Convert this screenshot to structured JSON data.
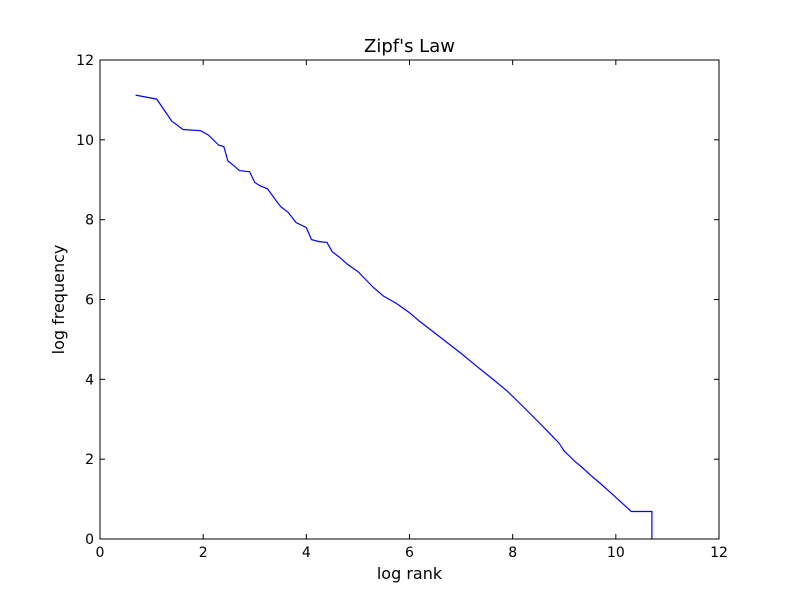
{
  "chart_data": {
    "type": "line",
    "title": "Zipf's Law",
    "xlabel": "log rank",
    "ylabel": "log frequency",
    "xlim": [
      0,
      12
    ],
    "ylim": [
      0,
      12
    ],
    "xticks": [
      "0",
      "2",
      "4",
      "6",
      "8",
      "10",
      "12"
    ],
    "yticks": [
      "0",
      "2",
      "4",
      "6",
      "8",
      "10",
      "12"
    ],
    "grid": false,
    "line_color": "#0000ff",
    "series": [
      {
        "values": [
          [
            0.69,
            11.12
          ],
          [
            1.1,
            11.02
          ],
          [
            1.39,
            10.47
          ],
          [
            1.61,
            10.26
          ],
          [
            1.95,
            10.23
          ],
          [
            2.1,
            10.12
          ],
          [
            2.3,
            9.87
          ],
          [
            2.4,
            9.83
          ],
          [
            2.48,
            9.47
          ],
          [
            2.6,
            9.35
          ],
          [
            2.7,
            9.23
          ],
          [
            2.9,
            9.2
          ],
          [
            3.0,
            8.93
          ],
          [
            3.1,
            8.85
          ],
          [
            3.25,
            8.77
          ],
          [
            3.4,
            8.5
          ],
          [
            3.5,
            8.33
          ],
          [
            3.65,
            8.18
          ],
          [
            3.8,
            7.93
          ],
          [
            4.0,
            7.8
          ],
          [
            4.1,
            7.5
          ],
          [
            4.25,
            7.45
          ],
          [
            4.4,
            7.43
          ],
          [
            4.5,
            7.2
          ],
          [
            4.65,
            7.05
          ],
          [
            4.8,
            6.88
          ],
          [
            5.0,
            6.7
          ],
          [
            5.15,
            6.5
          ],
          [
            5.3,
            6.3
          ],
          [
            5.5,
            6.08
          ],
          [
            5.75,
            5.9
          ],
          [
            6.0,
            5.67
          ],
          [
            6.2,
            5.45
          ],
          [
            6.4,
            5.25
          ],
          [
            6.7,
            4.95
          ],
          [
            7.0,
            4.65
          ],
          [
            7.3,
            4.33
          ],
          [
            7.6,
            4.02
          ],
          [
            7.9,
            3.7
          ],
          [
            8.2,
            3.32
          ],
          [
            8.5,
            2.93
          ],
          [
            8.75,
            2.6
          ],
          [
            8.9,
            2.4
          ],
          [
            9.0,
            2.2
          ],
          [
            9.1,
            2.08
          ],
          [
            9.2,
            1.95
          ],
          [
            9.35,
            1.79
          ],
          [
            9.5,
            1.61
          ],
          [
            9.7,
            1.39
          ],
          [
            9.95,
            1.1
          ],
          [
            10.3,
            0.69
          ],
          [
            10.7,
            0.69
          ],
          [
            10.7,
            0.0
          ]
        ]
      }
    ]
  }
}
